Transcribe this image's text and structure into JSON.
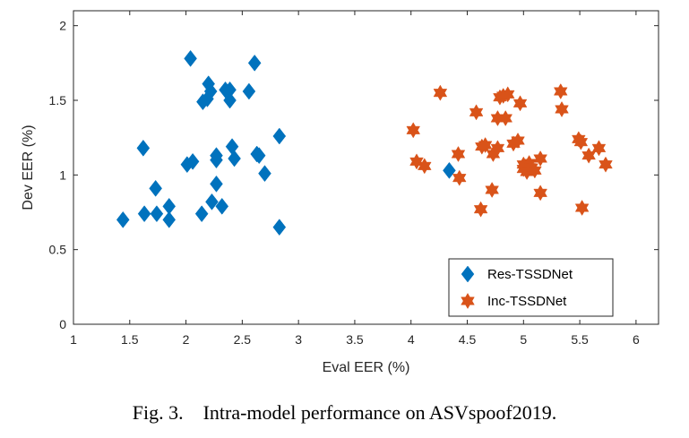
{
  "caption": {
    "figure_label": "Fig. 3.",
    "text": "Intra-model performance on ASVspoof2019."
  },
  "colors": {
    "res": "#0072BD",
    "inc": "#D95319",
    "axis": "#262626",
    "grid": "none"
  },
  "chart_data": {
    "type": "scatter",
    "title": "",
    "xlabel": "Eval EER (%)",
    "ylabel": "Dev EER (%)",
    "xlim": [
      1,
      6.2
    ],
    "ylim": [
      0,
      2.1
    ],
    "xticks": [
      1,
      1.5,
      2,
      2.5,
      3,
      3.5,
      4,
      4.5,
      5,
      5.5,
      6
    ],
    "xtick_labels": [
      "1",
      "1.5",
      "2",
      "2.5",
      "3",
      "3.5",
      "4",
      "4.5",
      "5",
      "5.5",
      "6"
    ],
    "yticks": [
      0,
      0.5,
      1,
      1.5,
      2
    ],
    "ytick_labels": [
      "0",
      "0.5",
      "1",
      "1.5",
      "2"
    ],
    "grid": false,
    "legend_position": "bottom-right",
    "series": [
      {
        "name": "Res-TSSDNet",
        "marker": "diamond",
        "color": "#0072BD",
        "points": [
          [
            1.44,
            0.7
          ],
          [
            1.62,
            1.18
          ],
          [
            1.63,
            0.74
          ],
          [
            1.73,
            0.91
          ],
          [
            1.74,
            0.74
          ],
          [
            1.85,
            0.79
          ],
          [
            1.85,
            0.7
          ],
          [
            2.01,
            1.07
          ],
          [
            2.04,
            1.78
          ],
          [
            2.06,
            1.09
          ],
          [
            2.14,
            0.74
          ],
          [
            2.15,
            1.49
          ],
          [
            2.19,
            1.51
          ],
          [
            2.2,
            1.61
          ],
          [
            2.22,
            1.56
          ],
          [
            2.23,
            0.82
          ],
          [
            2.27,
            1.1
          ],
          [
            2.27,
            1.13
          ],
          [
            2.27,
            0.94
          ],
          [
            2.32,
            0.79
          ],
          [
            2.35,
            1.57
          ],
          [
            2.39,
            1.57
          ],
          [
            2.39,
            1.5
          ],
          [
            2.41,
            1.19
          ],
          [
            2.43,
            1.11
          ],
          [
            2.56,
            1.56
          ],
          [
            2.61,
            1.75
          ],
          [
            2.63,
            1.14
          ],
          [
            2.65,
            1.13
          ],
          [
            2.7,
            1.01
          ],
          [
            2.83,
            1.26
          ],
          [
            2.83,
            0.65
          ],
          [
            4.34,
            1.03
          ]
        ]
      },
      {
        "name": "Inc-TSSDNet",
        "marker": "hexagram",
        "color": "#D95319",
        "points": [
          [
            4.02,
            1.3
          ],
          [
            4.05,
            1.09
          ],
          [
            4.12,
            1.06
          ],
          [
            4.26,
            1.55
          ],
          [
            4.42,
            1.14
          ],
          [
            4.43,
            0.98
          ],
          [
            4.58,
            1.42
          ],
          [
            4.62,
            0.77
          ],
          [
            4.63,
            1.19
          ],
          [
            4.66,
            1.2
          ],
          [
            4.72,
            0.9
          ],
          [
            4.73,
            1.14
          ],
          [
            4.77,
            1.18
          ],
          [
            4.77,
            1.38
          ],
          [
            4.79,
            1.52
          ],
          [
            4.82,
            1.53
          ],
          [
            4.84,
            1.38
          ],
          [
            4.86,
            1.54
          ],
          [
            4.91,
            1.21
          ],
          [
            4.95,
            1.23
          ],
          [
            4.97,
            1.48
          ],
          [
            5.0,
            1.04
          ],
          [
            5.0,
            1.07
          ],
          [
            5.03,
            1.02
          ],
          [
            5.05,
            1.08
          ],
          [
            5.07,
            1.05
          ],
          [
            5.1,
            1.03
          ],
          [
            5.15,
            1.11
          ],
          [
            5.15,
            0.88
          ],
          [
            5.33,
            1.56
          ],
          [
            5.34,
            1.44
          ],
          [
            5.49,
            1.24
          ],
          [
            5.51,
            1.22
          ],
          [
            5.52,
            0.78
          ],
          [
            5.58,
            1.13
          ],
          [
            5.67,
            1.18
          ],
          [
            5.73,
            1.07
          ]
        ]
      }
    ]
  }
}
